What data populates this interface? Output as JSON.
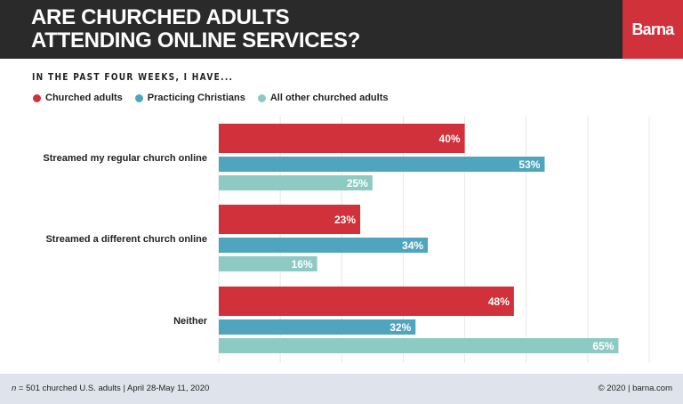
{
  "header": {
    "title_line1": "ARE CHURCHED ADULTS",
    "title_line2": "ATTENDING ONLINE SERVICES?",
    "logo": "Barna"
  },
  "colors": {
    "header_bg": "#2b2a2a",
    "brand_red": "#d1313a",
    "footer_bg": "#dfe4ec"
  },
  "chart_data": {
    "type": "bar",
    "orientation": "horizontal",
    "title": "IN THE PAST FOUR WEEKS, I HAVE...",
    "categories": [
      "Streamed my regular church online",
      "Streamed a different church online",
      "Neither"
    ],
    "series": [
      {
        "name": "Churched adults",
        "color": "#d1313a",
        "values": [
          40,
          23,
          48
        ]
      },
      {
        "name": "Practicing Christians",
        "color": "#4fa5bd",
        "values": [
          53,
          34,
          32
        ]
      },
      {
        "name": "All other churched adults",
        "color": "#8ecac4",
        "values": [
          25,
          16,
          65
        ]
      }
    ],
    "value_suffix": "%",
    "xlim": [
      0,
      70
    ],
    "grid": true,
    "legend_position": "top-left"
  },
  "footer": {
    "n_label": "n",
    "sample": " = 501 churched U.S. adults | April 28-May 11, 2020",
    "copyright": "© 2020 | barna.com"
  }
}
